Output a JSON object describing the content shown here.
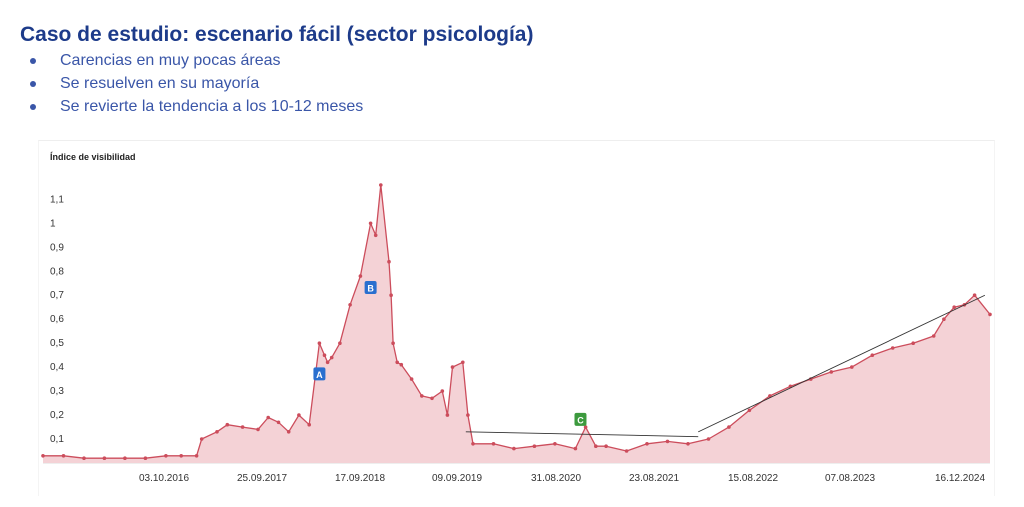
{
  "slide": {
    "title": "Caso de estudio: escenario fácil (sector psicología)",
    "bullets": [
      "Carencias en muy pocas áreas",
      "Se resuelven en su mayoría",
      "Se revierte la tendencia a los 10-12 meses"
    ]
  },
  "colors": {
    "title": "#1d3b8a",
    "bullet": "#3a56a8",
    "line": "#cc4d5c",
    "fill": "#f4d2d6",
    "marker_blue": "#2a6fcf",
    "marker_green": "#3c9a3e",
    "trendline": "#333333"
  },
  "chart_data": {
    "type": "area",
    "title": "Índice de visibilidad",
    "y_ticks": [
      "0,1",
      "0,2",
      "0,3",
      "0,4",
      "0,5",
      "0,6",
      "0,7",
      "0,8",
      "0,9",
      "1",
      "1,1"
    ],
    "x_ticks": [
      "03.10.2016",
      "25.09.2017",
      "17.09.2018",
      "09.09.2019",
      "31.08.2020",
      "23.08.2021",
      "15.08.2022",
      "07.08.2023",
      "16.12.2024"
    ],
    "ylim": [
      0,
      1.17
    ],
    "grid": false,
    "series": [
      {
        "x": [
          2015.8,
          2016.0,
          2016.2,
          2016.4,
          2016.6,
          2016.8,
          2017.0,
          2017.15,
          2017.3,
          2017.35,
          2017.5,
          2017.6,
          2017.75,
          2017.9,
          2018.0,
          2018.1,
          2018.2,
          2018.3,
          2018.4,
          2018.5,
          2018.55,
          2018.58,
          2018.62,
          2018.7,
          2018.8,
          2018.9,
          2019.0,
          2019.05,
          2019.1,
          2019.18,
          2019.2,
          2019.22,
          2019.26,
          2019.3,
          2019.4,
          2019.5,
          2019.6,
          2019.7,
          2019.75,
          2019.8,
          2019.9,
          2019.95,
          2020.0,
          2020.2,
          2020.4,
          2020.6,
          2020.8,
          2021.0,
          2021.1,
          2021.2,
          2021.3,
          2021.5,
          2021.7,
          2021.9,
          2022.1,
          2022.3,
          2022.5,
          2022.7,
          2022.9,
          2023.1,
          2023.3,
          2023.5,
          2023.7,
          2023.9,
          2024.1,
          2024.3,
          2024.5,
          2024.6,
          2024.7,
          2024.8,
          2024.9,
          2025.05
        ],
        "y": [
          0.03,
          0.03,
          0.02,
          0.02,
          0.02,
          0.02,
          0.03,
          0.03,
          0.03,
          0.1,
          0.13,
          0.16,
          0.15,
          0.14,
          0.19,
          0.17,
          0.13,
          0.2,
          0.16,
          0.5,
          0.45,
          0.42,
          0.44,
          0.5,
          0.66,
          0.78,
          1.0,
          0.95,
          1.16,
          0.84,
          0.7,
          0.5,
          0.42,
          0.41,
          0.35,
          0.28,
          0.27,
          0.3,
          0.2,
          0.4,
          0.42,
          0.2,
          0.08,
          0.08,
          0.06,
          0.07,
          0.08,
          0.06,
          0.15,
          0.07,
          0.07,
          0.05,
          0.08,
          0.09,
          0.08,
          0.1,
          0.15,
          0.22,
          0.28,
          0.32,
          0.35,
          0.38,
          0.4,
          0.45,
          0.48,
          0.5,
          0.53,
          0.6,
          0.65,
          0.66,
          0.7,
          0.62
        ]
      }
    ],
    "annotations": [
      {
        "label": "A",
        "x": 2018.5,
        "y": 0.37,
        "color": "blue"
      },
      {
        "label": "B",
        "x": 2019.0,
        "y": 0.73,
        "color": "blue"
      },
      {
        "label": "C",
        "x": 2021.05,
        "y": 0.18,
        "color": "green"
      }
    ],
    "trendlines": [
      {
        "x": [
          2019.93,
          2022.2
        ],
        "y": [
          0.13,
          0.11
        ]
      },
      {
        "x": [
          2022.2,
          2025.0
        ],
        "y": [
          0.13,
          0.7
        ]
      }
    ]
  }
}
